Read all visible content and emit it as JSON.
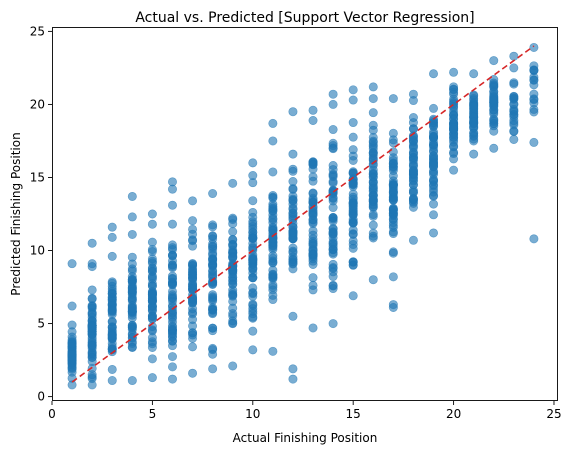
{
  "chart_data": {
    "type": "scatter",
    "title": "Actual vs. Predicted [Support Vector Regression]",
    "xlabel": "Actual Finishing Position",
    "ylabel": "Predicted Finishing Position",
    "xlim": [
      0.0,
      25.2
    ],
    "ylim": [
      -0.3,
      25.3
    ],
    "x_ticks": [
      0,
      5,
      10,
      15,
      20,
      25
    ],
    "y_ticks": [
      0,
      5,
      10,
      15,
      20,
      25
    ],
    "grid": false,
    "legend": "none",
    "colors": {
      "points": "#1f77b4",
      "reference_line": "#d62728"
    },
    "reference_line": {
      "style": "dashed",
      "points": [
        [
          1,
          1
        ],
        [
          24,
          24
        ]
      ]
    },
    "series": [
      {
        "columns": [
          {
            "x": 1,
            "min": 0.8,
            "max": 4.9,
            "n": 46,
            "outliers": [
              6.2,
              9.1
            ]
          },
          {
            "x": 2,
            "min": 0.8,
            "max": 7.3,
            "n": 55,
            "outliers": [
              8.9,
              9.1,
              10.5
            ]
          },
          {
            "x": 3,
            "min": 1.1,
            "max": 9.6,
            "n": 50,
            "outliers": [
              10.9,
              11.6
            ]
          },
          {
            "x": 4,
            "min": 1.1,
            "max": 11.1,
            "n": 52,
            "outliers": [
              12.3,
              13.7
            ]
          },
          {
            "x": 5,
            "min": 1.3,
            "max": 11.8,
            "n": 50,
            "outliers": [
              12.5
            ]
          },
          {
            "x": 6,
            "min": 1.2,
            "max": 13.1,
            "n": 50,
            "outliers": [
              14.2,
              14.7
            ]
          },
          {
            "x": 7,
            "min": 1.6,
            "max": 13.4,
            "n": 48,
            "outliers": []
          },
          {
            "x": 8,
            "min": 1.9,
            "max": 13.9,
            "n": 46,
            "outliers": [
              2.9,
              3.3
            ]
          },
          {
            "x": 9,
            "min": 2.1,
            "max": 14.6,
            "n": 48,
            "outliers": []
          },
          {
            "x": 10,
            "min": 3.2,
            "max": 16.0,
            "n": 52,
            "outliers": []
          },
          {
            "x": 11,
            "min": 3.1,
            "max": 17.5,
            "n": 52,
            "outliers": [
              18.7
            ]
          },
          {
            "x": 12,
            "min": 5.5,
            "max": 16.6,
            "n": 44,
            "outliers": [
              1.9,
              1.2,
              19.5
            ]
          },
          {
            "x": 13,
            "min": 4.7,
            "max": 18.9,
            "n": 52,
            "outliers": [
              19.6
            ]
          },
          {
            "x": 14,
            "min": 5.0,
            "max": 20.0,
            "n": 52,
            "outliers": [
              20.7
            ]
          },
          {
            "x": 15,
            "min": 6.9,
            "max": 20.3,
            "n": 52,
            "outliers": [
              21.0
            ]
          },
          {
            "x": 16,
            "min": 8.0,
            "max": 20.4,
            "n": 52,
            "outliers": [
              21.2
            ]
          },
          {
            "x": 17,
            "min": 8.2,
            "max": 20.4,
            "n": 52,
            "outliers": [
              6.1,
              6.3
            ]
          },
          {
            "x": 18,
            "min": 10.7,
            "max": 20.7,
            "n": 48,
            "outliers": []
          },
          {
            "x": 19,
            "min": 11.2,
            "max": 22.1,
            "n": 48,
            "outliers": [
              14.0
            ]
          },
          {
            "x": 20,
            "min": 15.5,
            "max": 22.2,
            "n": 44,
            "outliers": []
          },
          {
            "x": 21,
            "min": 16.6,
            "max": 22.1,
            "n": 38,
            "outliers": []
          },
          {
            "x": 22,
            "min": 17.0,
            "max": 23.0,
            "n": 36,
            "outliers": []
          },
          {
            "x": 23,
            "min": 17.6,
            "max": 22.5,
            "n": 20,
            "outliers": [
              23.3
            ]
          },
          {
            "x": 24,
            "min": 17.4,
            "max": 23.9,
            "n": 14,
            "outliers": [
              10.8
            ]
          }
        ]
      }
    ]
  }
}
